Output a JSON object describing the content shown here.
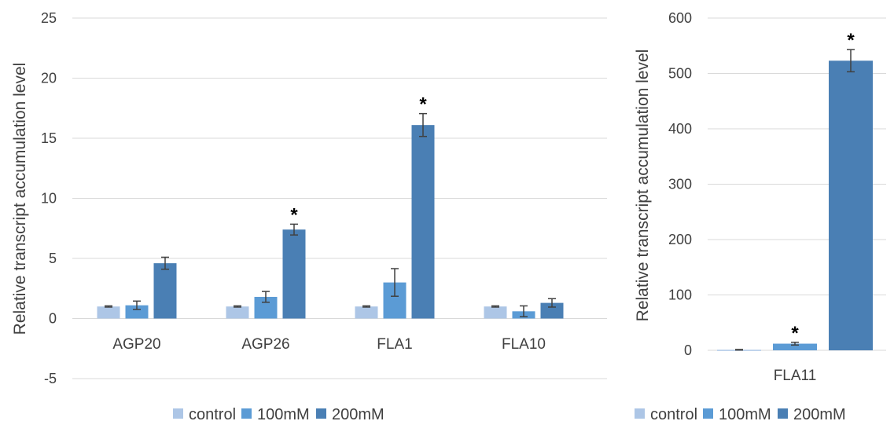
{
  "colors": {
    "control": "#adc6e6",
    "100mM": "#5b9bd5",
    "200mM": "#4a7fb4",
    "grid": "#d9d9d9",
    "error": "#404040"
  },
  "chart_data": [
    {
      "type": "bar",
      "ylabel": "Relative transcript accumulation level",
      "ylim": [
        -5,
        25
      ],
      "yticks": [
        -5,
        0,
        5,
        10,
        15,
        20,
        25
      ],
      "grid": true,
      "legend_position": "bottom",
      "categories": [
        "AGP20",
        "AGP26",
        "FLA1",
        "FLA10"
      ],
      "series": [
        {
          "name": "control",
          "values": [
            1.0,
            1.0,
            1.0,
            1.0
          ],
          "errors": [
            0.05,
            0.05,
            0.05,
            0.05
          ],
          "significant": [
            false,
            false,
            false,
            false
          ]
        },
        {
          "name": "100mM",
          "values": [
            1.1,
            1.8,
            3.0,
            0.6
          ],
          "errors": [
            0.35,
            0.45,
            1.15,
            0.45
          ],
          "significant": [
            false,
            false,
            false,
            false
          ]
        },
        {
          "name": "200mM",
          "values": [
            4.6,
            7.4,
            16.1,
            1.3
          ],
          "errors": [
            0.5,
            0.45,
            0.95,
            0.35
          ],
          "significant": [
            false,
            true,
            true,
            false
          ]
        }
      ],
      "annotation_symbol": "*"
    },
    {
      "type": "bar",
      "ylabel": "Relative transcript accumulation level",
      "ylim": [
        0,
        600
      ],
      "yticks": [
        0,
        100,
        200,
        300,
        400,
        500,
        600
      ],
      "grid": true,
      "legend_position": "bottom",
      "categories": [
        "FLA11"
      ],
      "series": [
        {
          "name": "control",
          "values": [
            1.0
          ],
          "errors": [
            0.5
          ],
          "significant": [
            false
          ]
        },
        {
          "name": "100mM",
          "values": [
            12
          ],
          "errors": [
            2.5
          ],
          "significant": [
            true
          ]
        },
        {
          "name": "200mM",
          "values": [
            523
          ],
          "errors": [
            20
          ],
          "significant": [
            true
          ]
        }
      ],
      "annotation_symbol": "*"
    }
  ]
}
